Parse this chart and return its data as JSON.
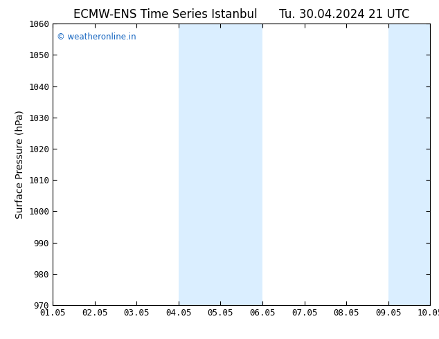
{
  "title": "ECMW-ENS Time Series Istanbul      Tu. 30.04.2024 21 UTC",
  "ylabel": "Surface Pressure (hPa)",
  "xlabel_ticks": [
    "01.05",
    "02.05",
    "03.05",
    "04.05",
    "05.05",
    "06.05",
    "07.05",
    "08.05",
    "09.05",
    "10.05"
  ],
  "ylim": [
    970,
    1060
  ],
  "yticks": [
    970,
    980,
    990,
    1000,
    1010,
    1020,
    1030,
    1040,
    1050,
    1060
  ],
  "background_color": "#ffffff",
  "plot_bg_color": "#ffffff",
  "shaded_regions": [
    {
      "xstart": 3.0,
      "xend": 5.0,
      "color": "#daeeff"
    },
    {
      "xstart": 8.0,
      "xend": 9.5,
      "color": "#daeeff"
    }
  ],
  "watermark_text": "© weatheronline.in",
  "watermark_color": "#1565c0",
  "title_fontsize": 12,
  "tick_fontsize": 9,
  "ylabel_fontsize": 10,
  "spine_color": "#000000",
  "tick_color": "#000000"
}
